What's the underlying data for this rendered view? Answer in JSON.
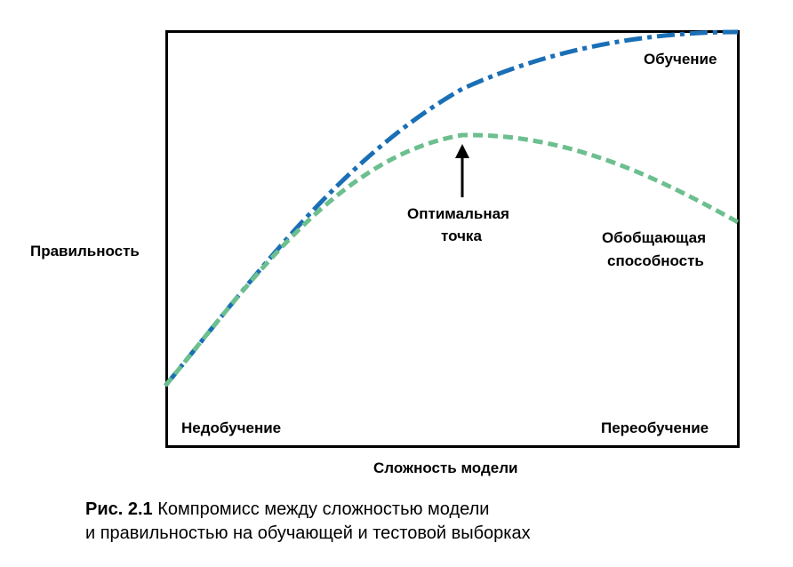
{
  "figure": {
    "ylabel": "Правильность",
    "xlabel": "Сложность модели",
    "annotations": {
      "train_curve": "Обучение",
      "optimal_line1": "Оптимальная",
      "optimal_line2": "точка",
      "generalization_line1": "Обобщающая",
      "generalization_line2": "способность",
      "underfitting": "Недобучение",
      "overfitting": "Переобучение"
    },
    "colors": {
      "train": "#1a6fb5",
      "test": "#6cbf8e",
      "frame": "#000000"
    }
  },
  "caption": {
    "number": "Рис. 2.1",
    "line1": "Компромисс между сложностью модели",
    "line2": "и правильностью на обучающей и тестовой выборках"
  }
}
